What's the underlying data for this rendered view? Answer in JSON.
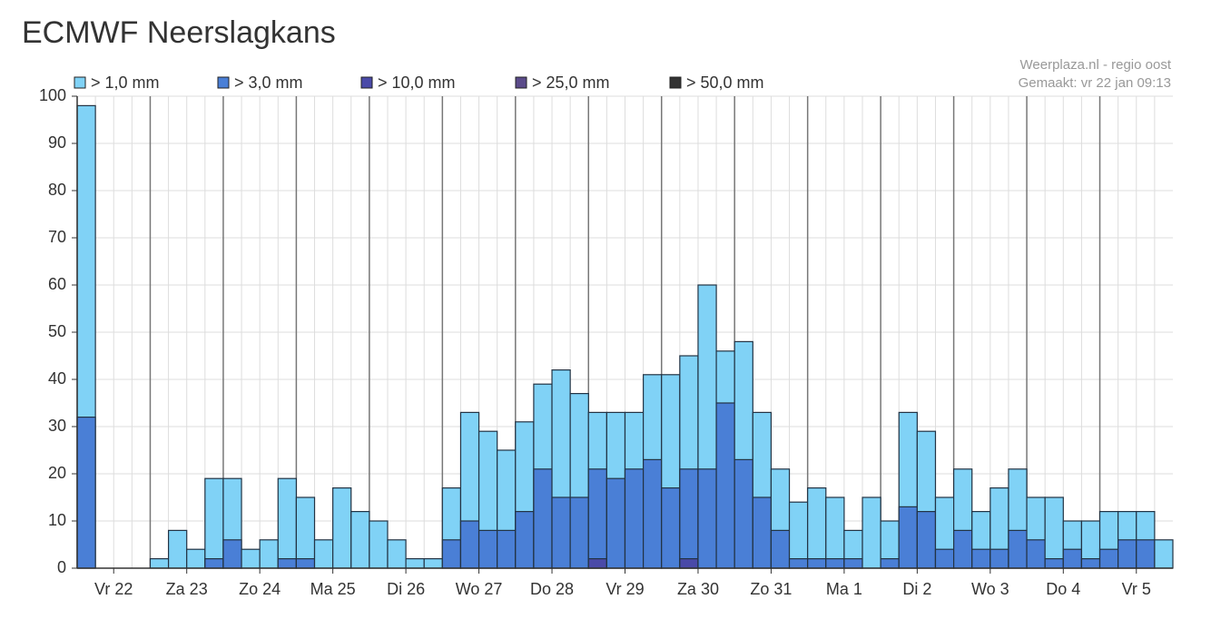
{
  "chart_data": {
    "type": "bar",
    "title": "ECMWF Neerslagkans",
    "annotations": [
      "Weerplaza.nl - regio oost",
      "Gemaakt: vr 22 jan 09:13"
    ],
    "categories": [
      null,
      "Vr 22",
      null,
      null,
      null,
      "Za 23",
      null,
      null,
      null,
      "Zo 24",
      null,
      null,
      null,
      "Ma 25",
      null,
      null,
      null,
      "Di 26",
      null,
      null,
      null,
      "Wo 27",
      null,
      null,
      null,
      "Do 28",
      null,
      null,
      null,
      "Vr 29",
      null,
      null,
      null,
      "Za 30",
      null,
      null,
      null,
      "Zo 31",
      null,
      null,
      null,
      "Ma 1",
      null,
      null,
      null,
      "Di 2",
      null,
      null,
      null,
      "Wo 3",
      null,
      null,
      null,
      "Do 4",
      null,
      null,
      null,
      "Vr 5",
      null,
      null
    ],
    "series": [
      {
        "name": "> 1,0 mm",
        "color": "#80d2f6",
        "values": [
          98,
          0,
          0,
          0,
          2,
          8,
          4,
          19,
          19,
          4,
          6,
          19,
          15,
          6,
          17,
          12,
          10,
          6,
          2,
          2,
          17,
          33,
          29,
          25,
          31,
          39,
          42,
          37,
          33,
          33,
          33,
          41,
          41,
          45,
          60,
          46,
          48,
          33,
          21,
          14,
          17,
          15,
          8,
          15,
          10,
          33,
          29,
          15,
          21,
          12,
          17,
          21,
          15,
          15,
          10,
          10,
          12,
          12,
          12,
          6
        ]
      },
      {
        "name": "> 3,0 mm",
        "color": "#4a7fd6",
        "values": [
          32,
          0,
          0,
          0,
          0,
          0,
          0,
          2,
          6,
          0,
          0,
          2,
          2,
          0,
          0,
          0,
          0,
          0,
          0,
          0,
          6,
          10,
          8,
          8,
          12,
          21,
          15,
          15,
          21,
          19,
          21,
          23,
          17,
          21,
          21,
          35,
          23,
          15,
          8,
          2,
          2,
          2,
          2,
          0,
          2,
          13,
          12,
          4,
          8,
          4,
          4,
          8,
          6,
          2,
          4,
          2,
          4,
          6,
          6,
          0
        ]
      },
      {
        "name": "> 10,0 mm",
        "color": "#4a4aa8",
        "values": [
          0,
          0,
          0,
          0,
          0,
          0,
          0,
          0,
          0,
          0,
          0,
          0,
          0,
          0,
          0,
          0,
          0,
          0,
          0,
          0,
          0,
          0,
          0,
          0,
          0,
          0,
          0,
          0,
          2,
          0,
          0,
          0,
          0,
          2,
          0,
          0,
          0,
          0,
          0,
          0,
          0,
          0,
          0,
          0,
          0,
          0,
          0,
          0,
          0,
          0,
          0,
          0,
          0,
          0,
          0,
          0,
          0,
          0,
          0,
          0
        ]
      },
      {
        "name": "> 25,0 mm",
        "color": "#5b4b8a",
        "values": [
          0,
          0,
          0,
          0,
          0,
          0,
          0,
          0,
          0,
          0,
          0,
          0,
          0,
          0,
          0,
          0,
          0,
          0,
          0,
          0,
          0,
          0,
          0,
          0,
          0,
          0,
          0,
          0,
          0,
          0,
          0,
          0,
          0,
          0,
          0,
          0,
          0,
          0,
          0,
          0,
          0,
          0,
          0,
          0,
          0,
          0,
          0,
          0,
          0,
          0,
          0,
          0,
          0,
          0,
          0,
          0,
          0,
          0,
          0,
          0
        ]
      },
      {
        "name": "> 50,0 mm",
        "color": "#333333",
        "values": [
          0,
          0,
          0,
          0,
          0,
          0,
          0,
          0,
          0,
          0,
          0,
          0,
          0,
          0,
          0,
          0,
          0,
          0,
          0,
          0,
          0,
          0,
          0,
          0,
          0,
          0,
          0,
          0,
          0,
          0,
          0,
          0,
          0,
          0,
          0,
          0,
          0,
          0,
          0,
          0,
          0,
          0,
          0,
          0,
          0,
          0,
          0,
          0,
          0,
          0,
          0,
          0,
          0,
          0,
          0,
          0,
          0,
          0,
          0,
          0
        ]
      }
    ],
    "ylim": [
      0,
      100
    ],
    "yticks": [
      0,
      10,
      20,
      30,
      40,
      50,
      60,
      70,
      80,
      90,
      100
    ],
    "grid": true
  }
}
